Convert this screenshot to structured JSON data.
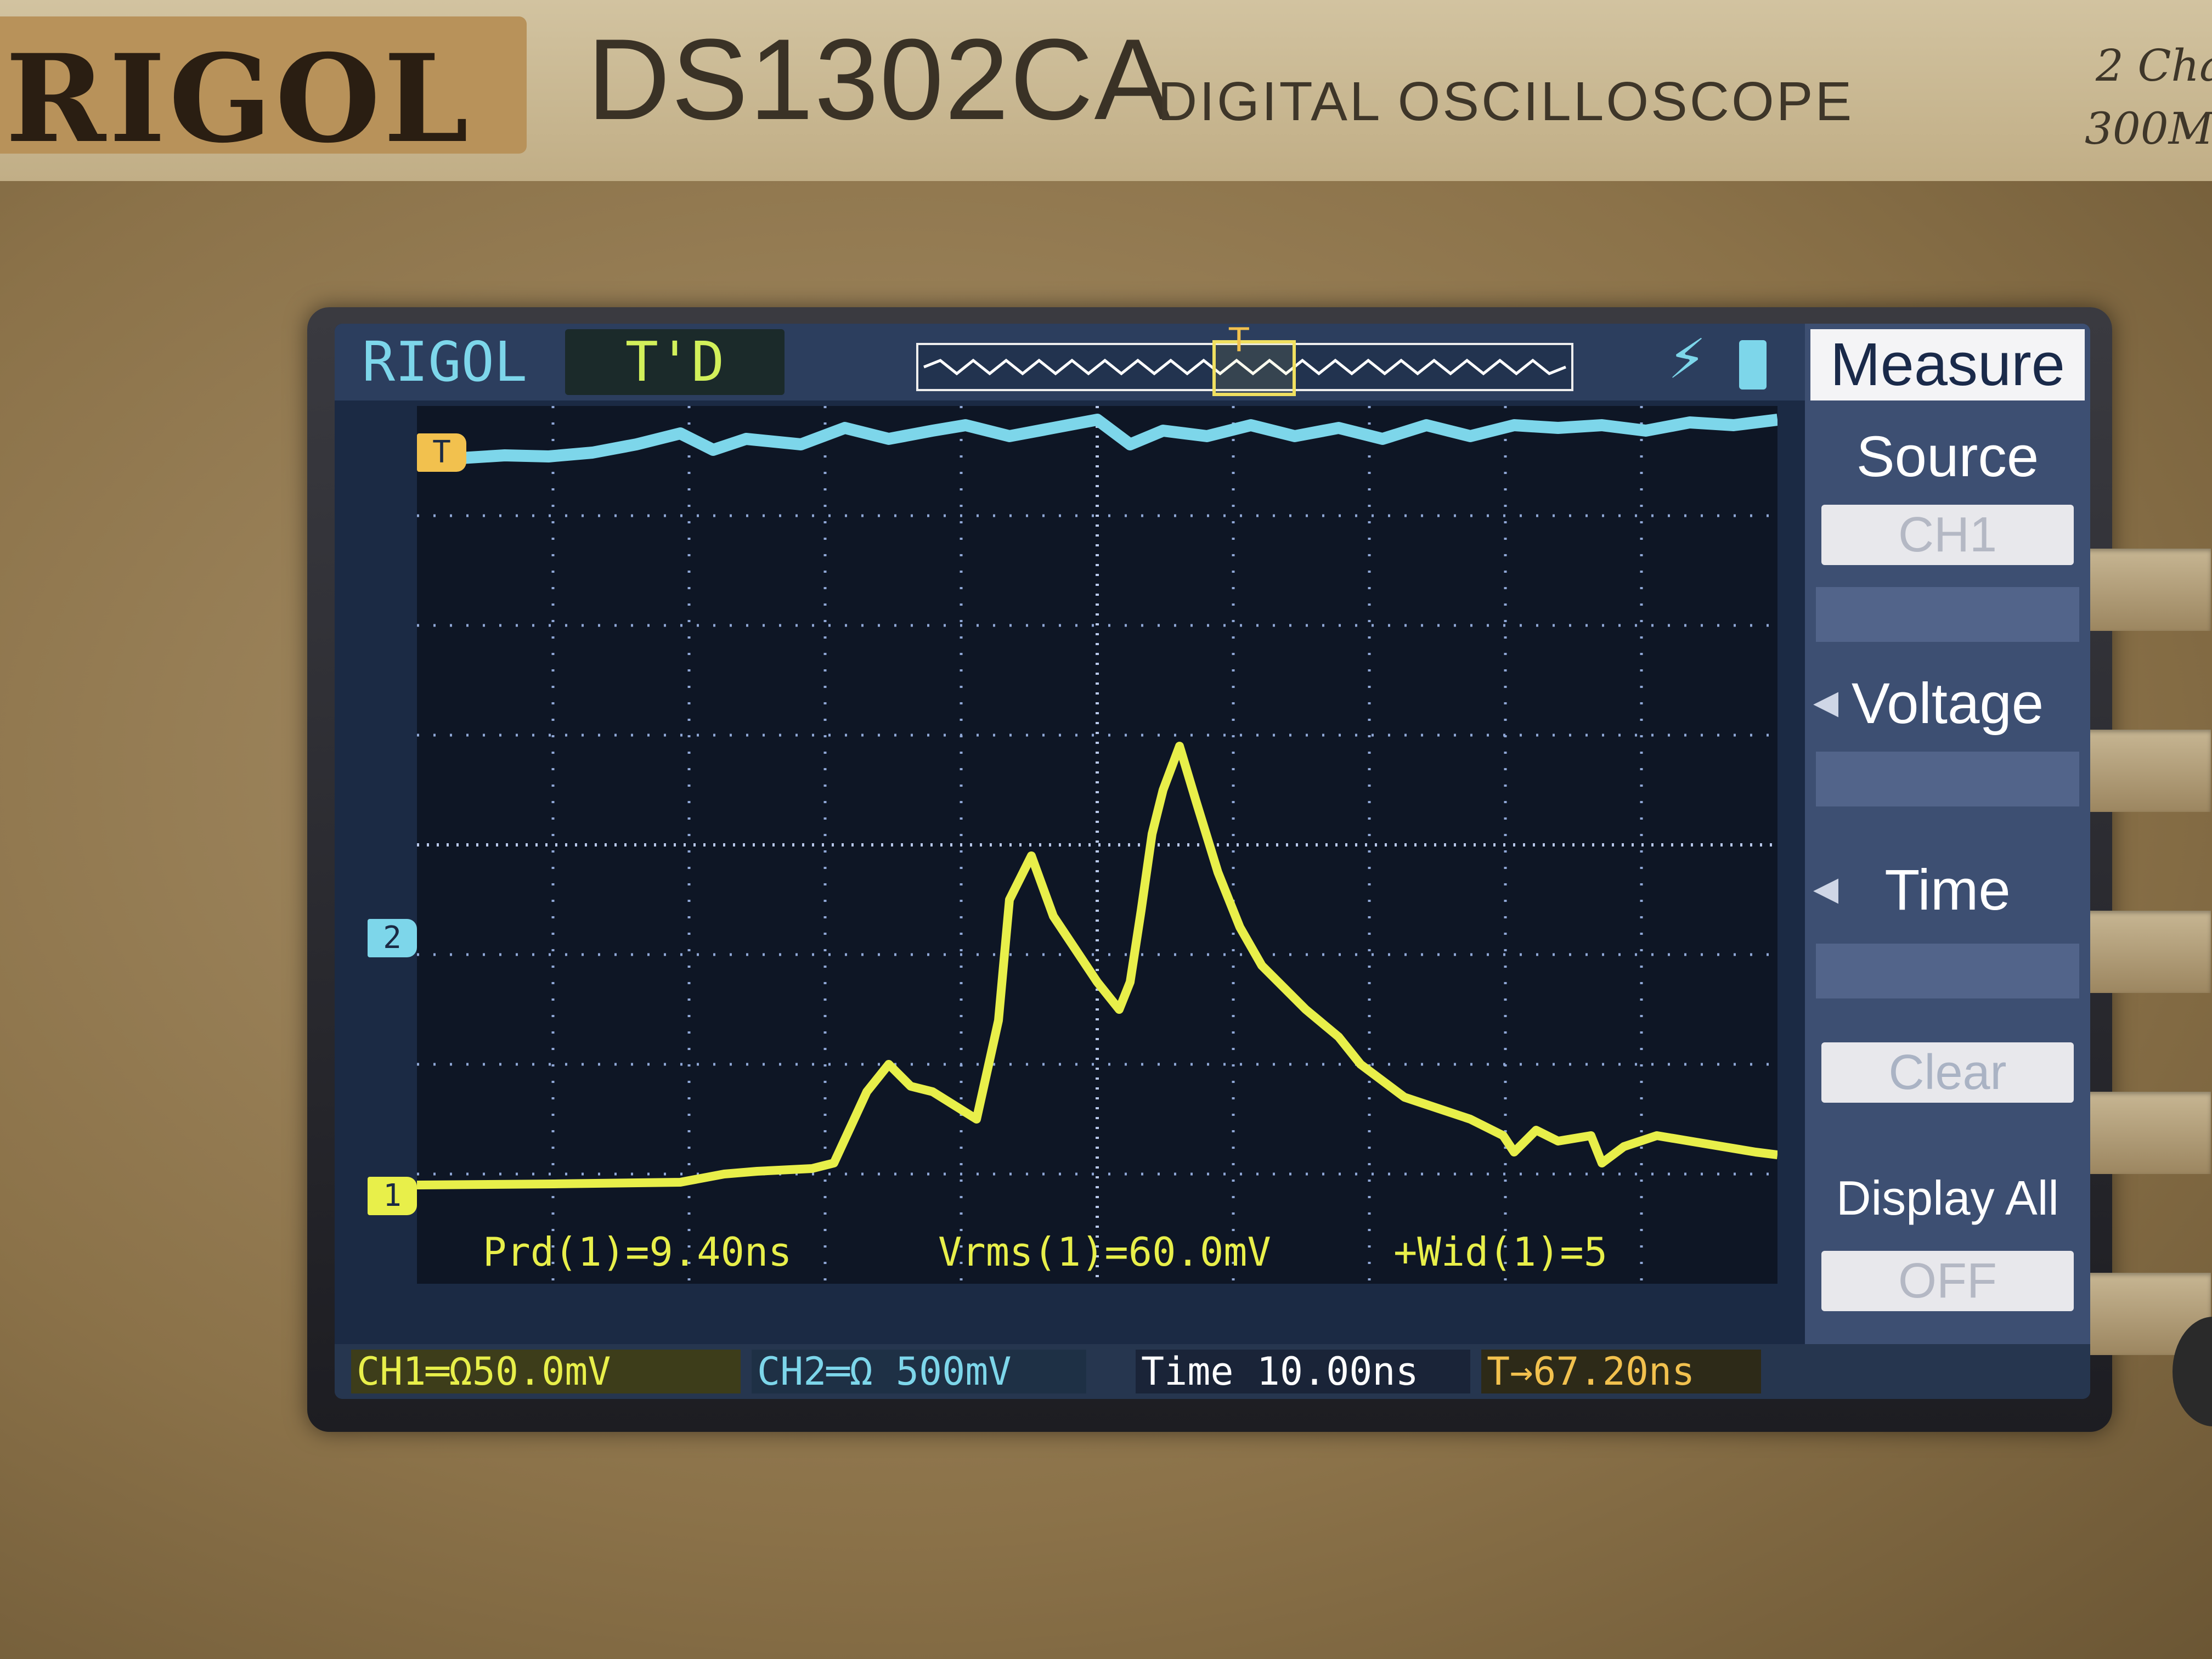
{
  "device": {
    "brand": "RIGOL",
    "model": "DS1302CA",
    "subtitle": "DIGITAL OSCILLOSCOPE",
    "spec_line1": "2 Cha",
    "spec_line2": "300M"
  },
  "screen": {
    "brand_label": "RIGOL",
    "trigger_status": "T'D",
    "slope_icon": "rising-edge-icon",
    "menu": {
      "title": "Measure",
      "source_label": "Source",
      "source_value": "CH1",
      "voltage_label": "Voltage",
      "time_label": "Time",
      "clear_label": "Clear",
      "display_all_label": "Display All",
      "display_all_value": "OFF"
    },
    "markers": {
      "trigger_marker": "T",
      "ch1_marker": "1",
      "ch2_marker": "2"
    },
    "measurements": {
      "period": "Prd(1)=9.40ns",
      "vrms": "Vrms(1)=60.0mV",
      "width": "+Wid(1)=5"
    },
    "bottom": {
      "ch1": "CH1═Ω50.0mV",
      "ch2": "CH2═Ω 500mV",
      "time": "Time  10.00ns",
      "trigger_offset": "T→67.20ns"
    }
  },
  "colors": {
    "ch1": "#e8ef4a",
    "ch2": "#7dd6ea",
    "trigger": "#f2c14e",
    "screen_bg": "#1b2a44"
  }
}
